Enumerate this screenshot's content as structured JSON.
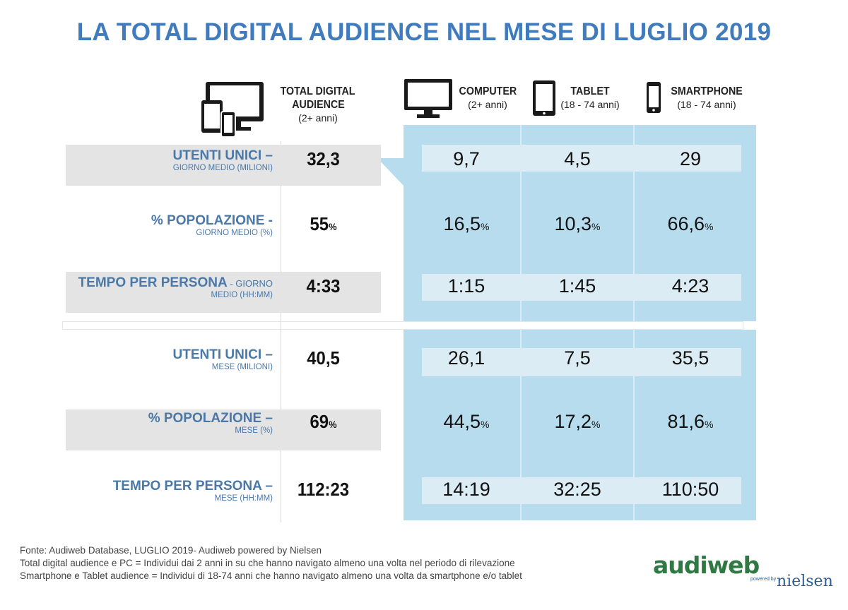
{
  "title": "LA TOTAL DIGITAL AUDIENCE NEL MESE DI LUGLIO 2019",
  "columns": [
    {
      "key": "total",
      "title": "TOTAL DIGITAL AUDIENCE",
      "title_line1": "TOTAL DIGITAL",
      "title_line2": "AUDIENCE",
      "subtitle": "(2+ anni)",
      "icon": "multi-device-icon"
    },
    {
      "key": "computer",
      "title": "COMPUTER",
      "subtitle": "(2+ anni)",
      "icon": "monitor-icon"
    },
    {
      "key": "tablet",
      "title": "TABLET",
      "subtitle": "(18 - 74 anni)",
      "icon": "tablet-icon"
    },
    {
      "key": "smartphone",
      "title": "SMARTPHONE",
      "subtitle": "(18 - 74 anni)",
      "icon": "smartphone-icon"
    }
  ],
  "rows": [
    {
      "label_main": "UTENTI UNICI –",
      "label_sub": "GIORNO MEDIO (MILIONI)",
      "total": "32,3",
      "computer": "9,7",
      "tablet": "4,5",
      "smartphone": "29",
      "pct": false
    },
    {
      "label_main": "% POPOLAZIONE -",
      "label_sub": "GIORNO MEDIO (%)",
      "total": "55",
      "computer": "16,5",
      "tablet": "10,3",
      "smartphone": "66,6",
      "pct": true,
      "pct_sign": "%"
    },
    {
      "label_main": "TEMPO PER PERSONA",
      "label_inline": " - GIORNO",
      "label_sub": "MEDIO (HH:MM)",
      "total": "4:33",
      "computer": "1:15",
      "tablet": "1:45",
      "smartphone": "4:23",
      "pct": false
    },
    {
      "label_main": "UTENTI UNICI –",
      "label_sub": "MESE (MILIONI)",
      "total": "40,5",
      "computer": "26,1",
      "tablet": "7,5",
      "smartphone": "35,5",
      "pct": false
    },
    {
      "label_main": "% POPOLAZIONE –",
      "label_sub": "MESE (%)",
      "total": "69",
      "computer": "44,5",
      "tablet": "17,2",
      "smartphone": "81,6",
      "pct": true,
      "pct_sign": "%"
    },
    {
      "label_main": "TEMPO PER PERSONA –",
      "label_sub": "MESE (HH:MM)",
      "total": "112:23",
      "computer": "14:19",
      "tablet": "32:25",
      "smartphone": "110:50",
      "pct": false
    }
  ],
  "chart_data": {
    "type": "table",
    "title": "LA TOTAL DIGITAL AUDIENCE NEL MESE DI LUGLIO 2019",
    "columns": [
      "TOTAL DIGITAL AUDIENCE (2+ anni)",
      "COMPUTER (2+ anni)",
      "TABLET (18 - 74 anni)",
      "SMARTPHONE (18 - 74 anni)"
    ],
    "rows": [
      {
        "label": "UTENTI UNICI – GIORNO MEDIO (MILIONI)",
        "values": [
          32.3,
          9.7,
          4.5,
          29
        ]
      },
      {
        "label": "% POPOLAZIONE - GIORNO MEDIO (%)",
        "values": [
          55,
          16.5,
          10.3,
          66.6
        ]
      },
      {
        "label": "TEMPO PER PERSONA - GIORNO MEDIO (HH:MM)",
        "values": [
          "4:33",
          "1:15",
          "1:45",
          "4:23"
        ]
      },
      {
        "label": "UTENTI UNICI – MESE (MILIONI)",
        "values": [
          40.5,
          26.1,
          7.5,
          35.5
        ]
      },
      {
        "label": "% POPOLAZIONE – MESE (%)",
        "values": [
          69,
          44.5,
          17.2,
          81.6
        ]
      },
      {
        "label": "TEMPO PER PERSONA – MESE (HH:MM)",
        "values": [
          "112:23",
          "14:19",
          "32:25",
          "110:50"
        ]
      }
    ]
  },
  "footer": {
    "line1": "Fonte: Audiweb Database, LUGLIO 2019- Audiweb powered by Nielsen",
    "line2": "Total digital audience e PC = Individui dai 2 anni in su che hanno navigato almeno una volta nel periodo di rilevazione",
    "line3": "Smartphone e Tablet audience = Individui di 18-74 anni che hanno navigato almeno una volta da smartphone e/o tablet"
  },
  "logo": {
    "brand": "audiweb",
    "powered": "powered by",
    "partner": "nielsen"
  },
  "colors": {
    "title": "#3f7bbd",
    "label": "#4a78a8",
    "panel": "#b6dcee",
    "gray_band": "#e4e4e4",
    "logo_green": "#2f7a43",
    "logo_blue": "#2c5d93"
  }
}
